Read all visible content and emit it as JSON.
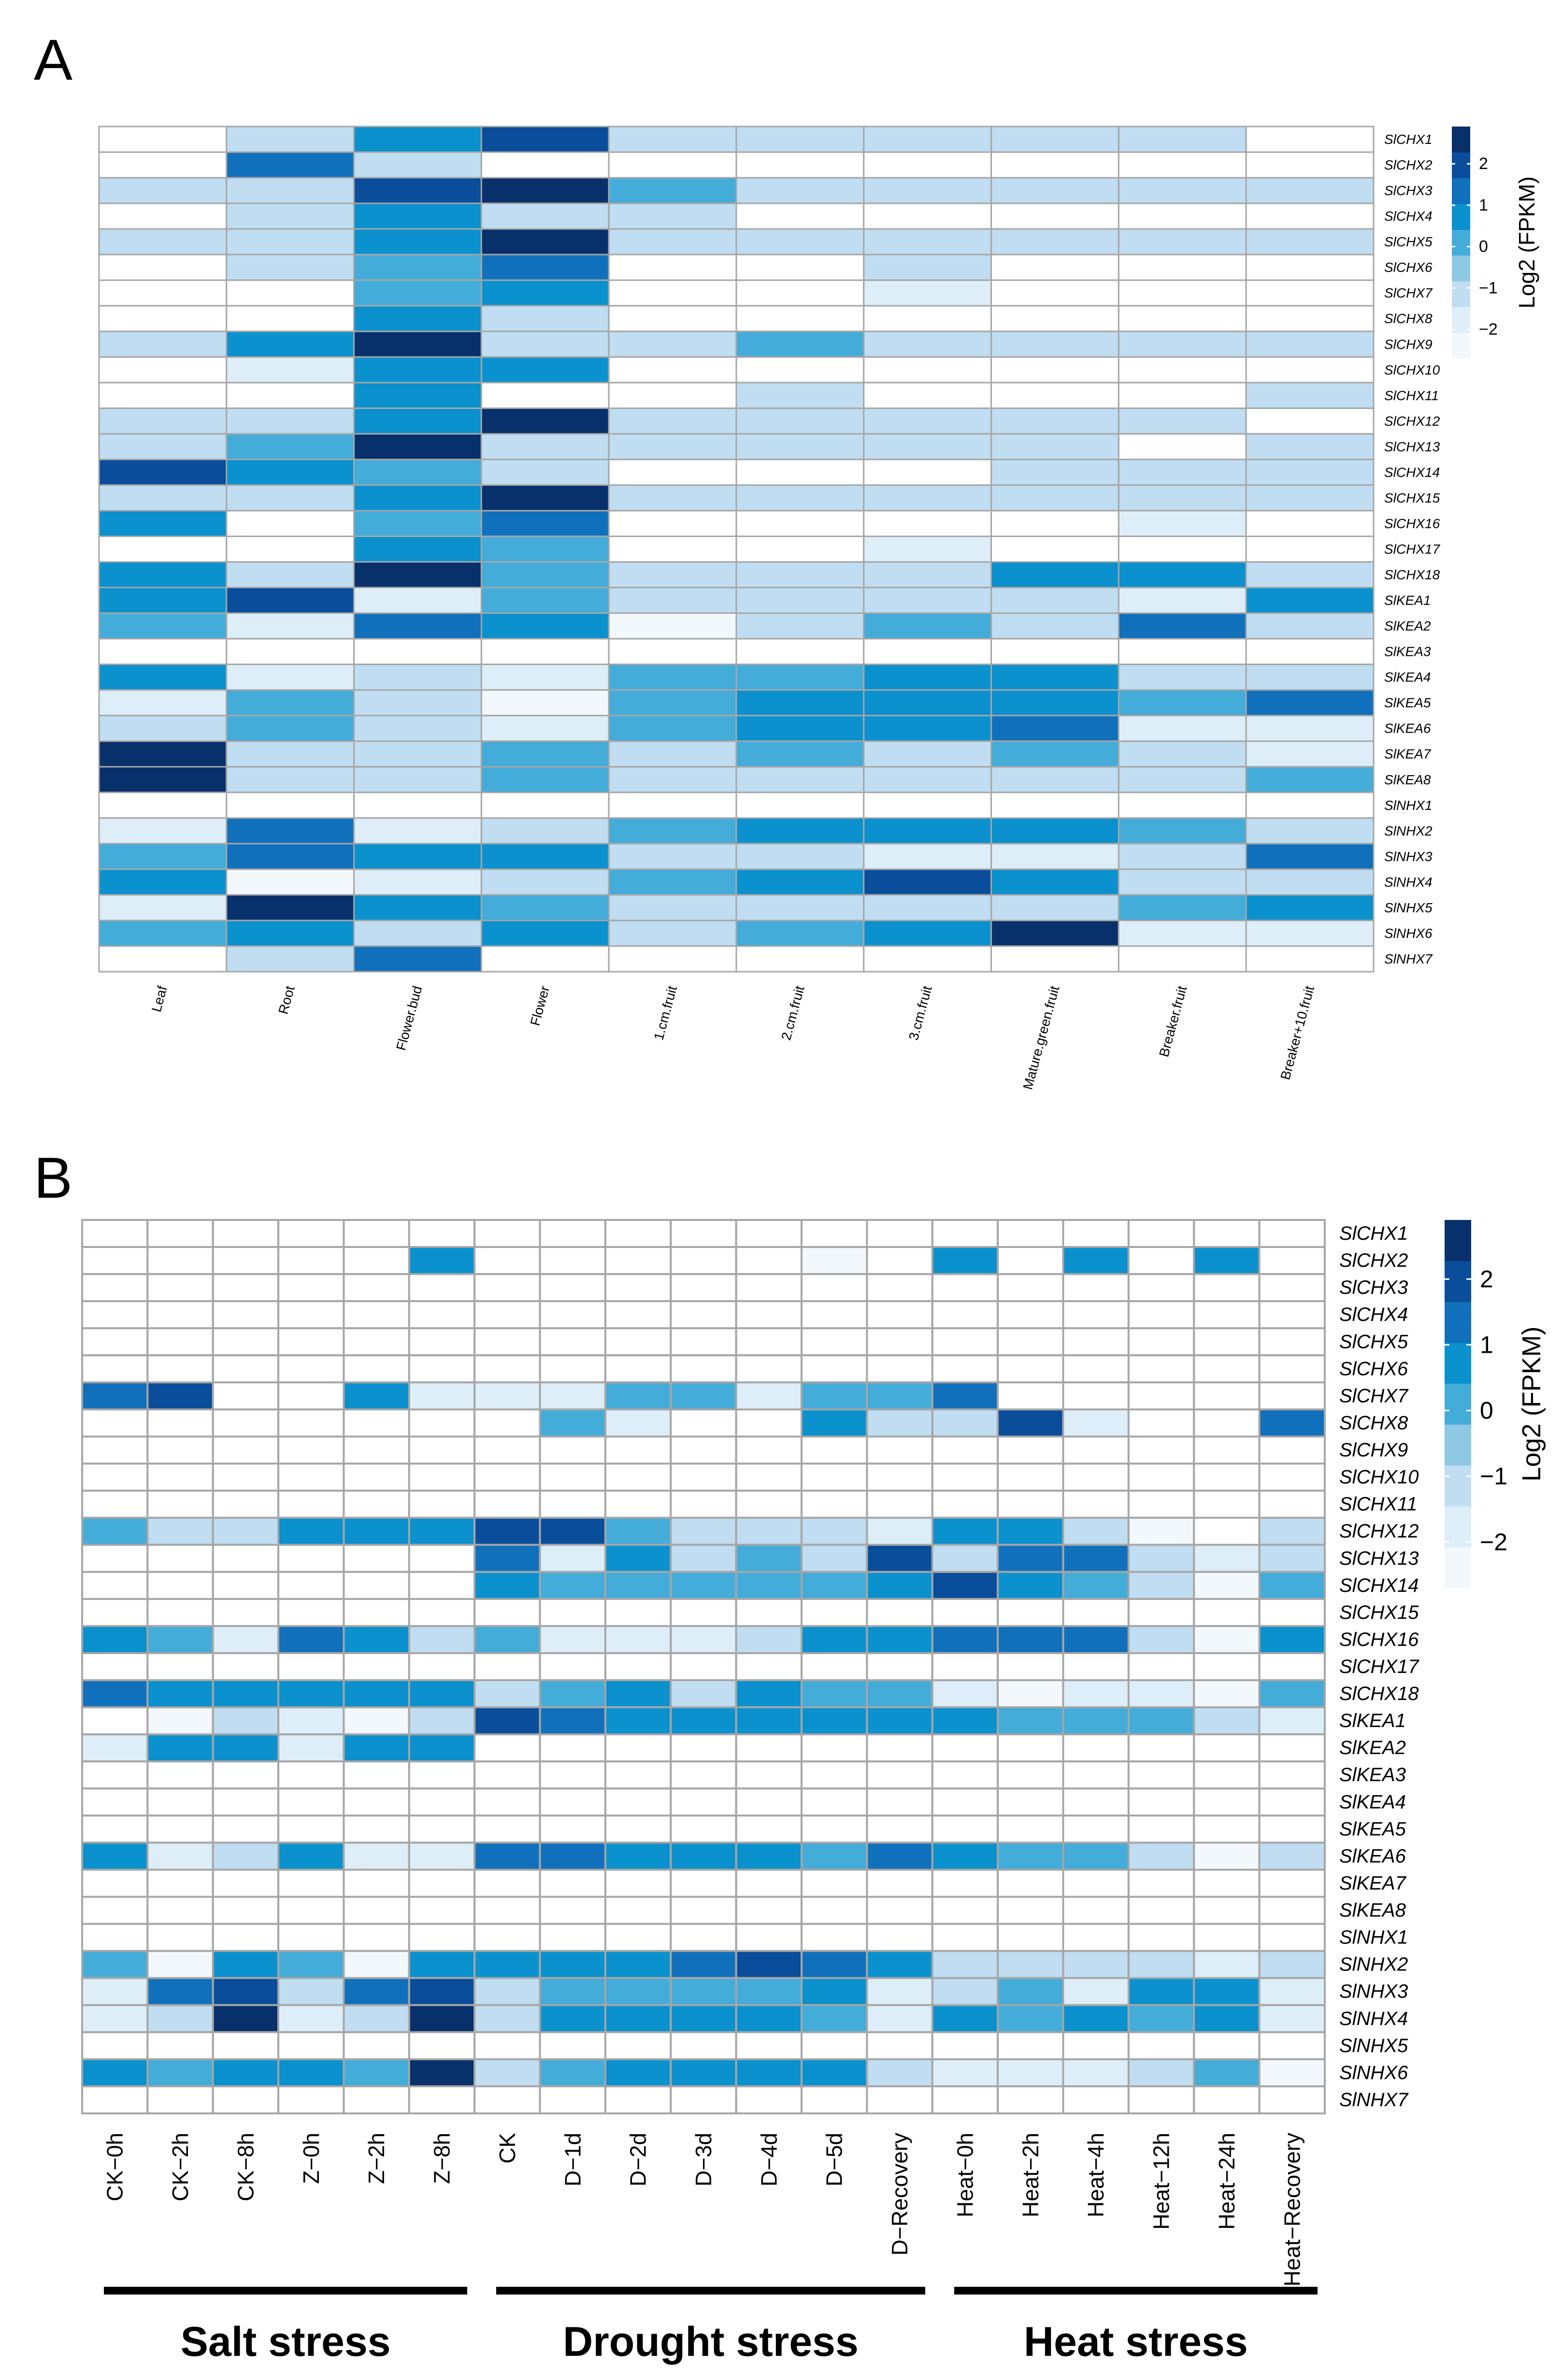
{
  "panels": {
    "a": {
      "label": "A"
    },
    "b": {
      "label": "B"
    }
  },
  "palette": {
    "colors": [
      "#f3f8fd",
      "#ddeef9",
      "#c0ddf1",
      "#8ec8e3",
      "#44acd9",
      "#0a91ce",
      "#1170bb",
      "#0a4d9a",
      "#08306b"
    ],
    "grid_color": "#a6a6a6",
    "blank_color": "#ffffff"
  },
  "chart_data": [
    {
      "type": "heatmap",
      "panel": "A",
      "title": "",
      "row_labels": [
        "SlCHX1",
        "SlCHX2",
        "SlCHX3",
        "SlCHX4",
        "SlCHX5",
        "SlCHX6",
        "SlCHX7",
        "SlCHX8",
        "SlCHX9",
        "SlCHX10",
        "SlCHX11",
        "SlCHX12",
        "SlCHX13",
        "SlCHX14",
        "SlCHX15",
        "SlCHX16",
        "SlCHX17",
        "SlCHX18",
        "SlKEA1",
        "SlKEA2",
        "SlKEA3",
        "SlKEA4",
        "SlKEA5",
        "SlKEA6",
        "SlKEA7",
        "SlKEA8",
        "SlNHX1",
        "SlNHX2",
        "SlNHX3",
        "SlNHX4",
        "SlNHX5",
        "SlNHX6",
        "SlNHX7"
      ],
      "col_labels": [
        "Leaf",
        "Root",
        "Flower.bud",
        "Flower",
        "1.cm.fruit",
        "2.cm.fruit",
        "3.cm.fruit",
        "Mature.green.fruit",
        "Breaker.fruit",
        "Breaker+10.fruit"
      ],
      "values": [
        [
          null,
          -1,
          1,
          2,
          -1,
          -1,
          -1,
          -1,
          -1,
          null
        ],
        [
          null,
          1.5,
          -1,
          null,
          null,
          null,
          null,
          null,
          null,
          null
        ],
        [
          -1,
          -1,
          2,
          3,
          0,
          -1,
          -1,
          -1,
          -1,
          -1
        ],
        [
          null,
          -1,
          1,
          -1,
          -1,
          null,
          null,
          null,
          null,
          null
        ],
        [
          -1,
          -1,
          0.5,
          3,
          -1,
          -1,
          -1,
          -1,
          -1,
          -1
        ],
        [
          null,
          -1,
          0,
          1.5,
          null,
          null,
          -1,
          null,
          null,
          null
        ],
        [
          null,
          null,
          0,
          0.5,
          null,
          null,
          -1.8,
          null,
          null,
          null
        ],
        [
          null,
          null,
          1,
          -1,
          null,
          null,
          null,
          null,
          null,
          null
        ],
        [
          -1,
          0.5,
          3,
          -1,
          -1,
          0,
          -1,
          -1,
          -1,
          -1
        ],
        [
          null,
          -1.8,
          0.5,
          0.5,
          null,
          null,
          null,
          null,
          null,
          null
        ],
        [
          null,
          null,
          1,
          null,
          null,
          -1,
          null,
          null,
          null,
          -1
        ],
        [
          -1,
          -1,
          1,
          3,
          -1,
          -1,
          -1,
          -1,
          -1,
          null
        ],
        [
          -1,
          0,
          3,
          -1,
          -1,
          -1,
          -1,
          -1,
          null,
          -1
        ],
        [
          2,
          1,
          0,
          -1,
          null,
          null,
          null,
          -1,
          -1,
          -1
        ],
        [
          -1,
          -1,
          0.5,
          3,
          -1,
          -1,
          -1,
          -1,
          -1,
          -1
        ],
        [
          0.5,
          null,
          0,
          1.5,
          null,
          null,
          null,
          null,
          -1.8,
          null
        ],
        [
          null,
          null,
          1,
          0,
          null,
          null,
          -1.8,
          null,
          null,
          null
        ],
        [
          0.5,
          -1,
          3,
          0,
          -1,
          -1,
          -1,
          0.5,
          0.5,
          -1
        ],
        [
          1,
          2,
          -1.8,
          0,
          -1,
          -1,
          -1,
          -1,
          -1.8,
          0.5
        ],
        [
          0,
          -1.8,
          1.5,
          1,
          -2.5,
          -1,
          0,
          -1,
          1.5,
          -1
        ],
        [
          null,
          null,
          null,
          null,
          null,
          null,
          null,
          null,
          null,
          null
        ],
        [
          0.5,
          -1.8,
          -1,
          -1.8,
          0,
          0,
          1,
          1,
          -1,
          -1
        ],
        [
          -1.8,
          0,
          -1,
          -2.5,
          0,
          0.5,
          0.5,
          0.5,
          0,
          1.5
        ],
        [
          -1,
          0,
          -1,
          -1.8,
          0,
          0.5,
          1,
          1.5,
          -1.8,
          -1.8
        ],
        [
          3,
          -1,
          -1,
          0,
          -1,
          0,
          -1,
          0,
          -1,
          -1.8
        ],
        [
          3,
          -1,
          -1,
          0,
          -1,
          -1,
          -1,
          -1,
          -1,
          0
        ],
        [
          null,
          null,
          null,
          null,
          null,
          null,
          null,
          null,
          null,
          null
        ],
        [
          -1.8,
          1.5,
          -1.8,
          -1,
          0,
          0.5,
          1,
          0.5,
          0,
          -1
        ],
        [
          0,
          1.5,
          0.5,
          0.5,
          -1,
          -1,
          -1.8,
          -1.8,
          -1,
          1.5
        ],
        [
          0.5,
          -2.5,
          -1.8,
          -1,
          0,
          0.5,
          2,
          0.5,
          -1,
          -1
        ],
        [
          -1.8,
          3,
          1,
          0,
          -1,
          -1,
          -1,
          -1,
          0,
          0.5
        ],
        [
          0,
          0.5,
          -1,
          0.5,
          -1,
          0,
          0.5,
          3,
          -1.8,
          -1.8
        ],
        [
          null,
          -1,
          1.5,
          null,
          null,
          null,
          null,
          null,
          null,
          null
        ]
      ],
      "colorbar": {
        "title": "Log2 (FPKM)",
        "ticks": [
          "2",
          "1",
          "0",
          "−1",
          "−2"
        ],
        "tick_values": [
          2,
          1,
          0,
          -1,
          -2
        ],
        "range": [
          -2.7,
          2.9
        ]
      }
    },
    {
      "type": "heatmap",
      "panel": "B",
      "title": "",
      "row_labels": [
        "SlCHX1",
        "SlCHX2",
        "SlCHX3",
        "SlCHX4",
        "SlCHX5",
        "SlCHX6",
        "SlCHX7",
        "SlCHX8",
        "SlCHX9",
        "SlCHX10",
        "SlCHX11",
        "SlCHX12",
        "SlCHX13",
        "SlCHX14",
        "SlCHX15",
        "SlCHX16",
        "SlCHX17",
        "SlCHX18",
        "SlKEA1",
        "SlKEA2",
        "SlKEA3",
        "SlKEA4",
        "SlKEA5",
        "SlKEA6",
        "SlKEA7",
        "SlKEA8",
        "SlNHX1",
        "SlNHX2",
        "SlNHX3",
        "SlNHX4",
        "SlNHX5",
        "SlNHX6",
        "SlNHX7"
      ],
      "col_labels": [
        "CK−0h",
        "CK−2h",
        "CK−8h",
        "Z−0h",
        "Z−2h",
        "Z−8h",
        "CK",
        "D−1d",
        "D−2d",
        "D−3d",
        "D−4d",
        "D−5d",
        "D−Recovery",
        "Heat−0h",
        "Heat−2h",
        "Heat−4h",
        "Heat−12h",
        "Heat−24h",
        "Heat−Recovery"
      ],
      "values": [
        [
          null,
          null,
          null,
          null,
          null,
          null,
          null,
          null,
          null,
          null,
          null,
          null,
          null,
          null,
          null,
          null,
          null,
          null,
          null
        ],
        [
          null,
          null,
          null,
          null,
          null,
          0.5,
          null,
          null,
          null,
          null,
          null,
          -2.5,
          null,
          0.5,
          null,
          0.5,
          null,
          0.5,
          null
        ],
        [
          null,
          null,
          null,
          null,
          null,
          null,
          null,
          null,
          null,
          null,
          null,
          null,
          null,
          null,
          null,
          null,
          null,
          null,
          null
        ],
        [
          null,
          null,
          null,
          null,
          null,
          null,
          null,
          null,
          null,
          null,
          null,
          null,
          null,
          null,
          null,
          null,
          null,
          null,
          null
        ],
        [
          null,
          null,
          null,
          null,
          null,
          null,
          null,
          null,
          null,
          null,
          null,
          null,
          null,
          null,
          null,
          null,
          null,
          null,
          null
        ],
        [
          null,
          null,
          null,
          null,
          null,
          null,
          null,
          null,
          null,
          null,
          null,
          null,
          null,
          null,
          null,
          null,
          null,
          null,
          null
        ],
        [
          1.5,
          2,
          null,
          null,
          0.5,
          -1.8,
          -1.8,
          -1.8,
          0,
          0,
          -1.8,
          0,
          0,
          1.5,
          null,
          null,
          null,
          null,
          null
        ],
        [
          null,
          null,
          null,
          null,
          null,
          null,
          null,
          0,
          -1.8,
          null,
          null,
          0.5,
          -1,
          -1,
          2,
          -1.8,
          null,
          null,
          1.5
        ],
        [
          null,
          null,
          null,
          null,
          null,
          null,
          null,
          null,
          null,
          null,
          null,
          null,
          null,
          null,
          null,
          null,
          null,
          null,
          null
        ],
        [
          null,
          null,
          null,
          null,
          null,
          null,
          null,
          null,
          null,
          null,
          null,
          null,
          null,
          null,
          null,
          null,
          null,
          null,
          null
        ],
        [
          null,
          null,
          null,
          null,
          null,
          null,
          null,
          null,
          null,
          null,
          null,
          null,
          null,
          null,
          null,
          null,
          null,
          null,
          null
        ],
        [
          0,
          -1,
          -1,
          0.5,
          0.5,
          0.5,
          2,
          2,
          0,
          -1,
          -1,
          -1,
          -1.8,
          0.5,
          0.5,
          -1,
          -2.5,
          null,
          -1
        ],
        [
          null,
          null,
          null,
          null,
          null,
          null,
          1.5,
          -1.8,
          0.5,
          -1,
          0,
          -1,
          2,
          -1,
          1.5,
          1.5,
          -1,
          -1.8,
          -1
        ],
        [
          null,
          null,
          null,
          null,
          null,
          null,
          0.5,
          0,
          0,
          0,
          0,
          0,
          0.5,
          2,
          0.5,
          0,
          -1,
          -2.7,
          0
        ],
        [
          null,
          null,
          null,
          null,
          null,
          null,
          null,
          null,
          null,
          null,
          null,
          null,
          null,
          null,
          null,
          null,
          null,
          null,
          null
        ],
        [
          0.5,
          0,
          -1.8,
          1.5,
          0.5,
          -1,
          0,
          -1.8,
          -1.8,
          -1.8,
          -1,
          0.5,
          1,
          1.5,
          1.5,
          1.5,
          -1,
          -2.5,
          0.5
        ],
        [
          null,
          null,
          null,
          null,
          null,
          null,
          null,
          null,
          null,
          null,
          null,
          null,
          null,
          null,
          null,
          null,
          null,
          null,
          null
        ],
        [
          1.5,
          0.5,
          1,
          1,
          0.5,
          1,
          -1,
          0,
          0.5,
          -1,
          0.5,
          0,
          0,
          -1.8,
          -2.5,
          -1.8,
          -1.8,
          -2.5,
          0
        ],
        [
          null,
          -2.5,
          -1,
          -1.8,
          -2.5,
          -1,
          2,
          1.5,
          0.5,
          1,
          0.5,
          0.5,
          1,
          0.5,
          0,
          0,
          0,
          -1,
          -1.8
        ],
        [
          -1.8,
          0.5,
          0.5,
          -1.8,
          0.5,
          0.5,
          null,
          null,
          null,
          null,
          null,
          null,
          null,
          null,
          null,
          null,
          null,
          null,
          null
        ],
        [
          null,
          null,
          null,
          null,
          null,
          null,
          null,
          null,
          null,
          null,
          null,
          null,
          null,
          null,
          null,
          null,
          null,
          null,
          null
        ],
        [
          null,
          null,
          null,
          null,
          null,
          null,
          null,
          null,
          null,
          null,
          null,
          null,
          null,
          null,
          null,
          null,
          null,
          null,
          null
        ],
        [
          null,
          null,
          null,
          null,
          null,
          null,
          null,
          null,
          null,
          null,
          null,
          null,
          null,
          null,
          null,
          null,
          null,
          null,
          null
        ],
        [
          0.5,
          -1.8,
          -1,
          0.5,
          -1.8,
          -1.8,
          1.5,
          1.5,
          0.5,
          0.5,
          0.5,
          0,
          1.5,
          0.5,
          0,
          0,
          -1,
          -2.7,
          -1
        ],
        [
          null,
          null,
          null,
          null,
          null,
          null,
          null,
          null,
          null,
          null,
          null,
          null,
          null,
          null,
          null,
          null,
          null,
          null,
          null
        ],
        [
          null,
          null,
          null,
          null,
          null,
          null,
          null,
          null,
          null,
          null,
          null,
          null,
          null,
          null,
          null,
          null,
          null,
          null,
          null
        ],
        [
          null,
          null,
          null,
          null,
          null,
          null,
          null,
          null,
          null,
          null,
          null,
          null,
          null,
          null,
          null,
          null,
          null,
          null,
          null
        ],
        [
          0,
          -2.5,
          0.5,
          0,
          -2.5,
          0.5,
          0.5,
          0.5,
          0.5,
          1.5,
          2,
          1.5,
          0.5,
          -1,
          -1,
          -1,
          -1,
          -1.8,
          -1
        ],
        [
          -1.8,
          1.5,
          2,
          -1,
          1.5,
          2,
          -1,
          0,
          0,
          0,
          0,
          0.5,
          -1.8,
          -1,
          0,
          -1.8,
          0.5,
          0.5,
          -1.8
        ],
        [
          -1.8,
          -1,
          3,
          -1.8,
          -1,
          3,
          -1,
          0.5,
          0.5,
          0.5,
          0.5,
          0,
          -1.8,
          0.5,
          0,
          0.5,
          0,
          0.5,
          -1.8
        ],
        [
          null,
          null,
          null,
          null,
          null,
          null,
          null,
          null,
          null,
          null,
          null,
          null,
          null,
          null,
          null,
          null,
          null,
          null,
          null
        ],
        [
          0.5,
          0,
          1,
          0.5,
          0,
          3,
          -1,
          0,
          0.5,
          0.5,
          0.5,
          0.5,
          -1,
          -1.8,
          -1.8,
          -1.8,
          -1,
          0,
          -2.5
        ],
        [
          null,
          null,
          null,
          null,
          null,
          null,
          null,
          null,
          null,
          null,
          null,
          null,
          null,
          null,
          null,
          null,
          null,
          null,
          null
        ]
      ],
      "colorbar": {
        "title": "Log2 (FPKM)",
        "ticks": [
          "2",
          "1",
          "0",
          "−1",
          "−2"
        ],
        "tick_values": [
          2,
          1,
          0,
          -1,
          -2
        ],
        "range": [
          -2.7,
          2.9
        ]
      },
      "column_groups": [
        {
          "label": "Salt stress",
          "from": 0,
          "to": 5
        },
        {
          "label": "Drought stress",
          "from": 6,
          "to": 12
        },
        {
          "label": "Heat stress",
          "from": 13,
          "to": 18
        }
      ]
    }
  ]
}
